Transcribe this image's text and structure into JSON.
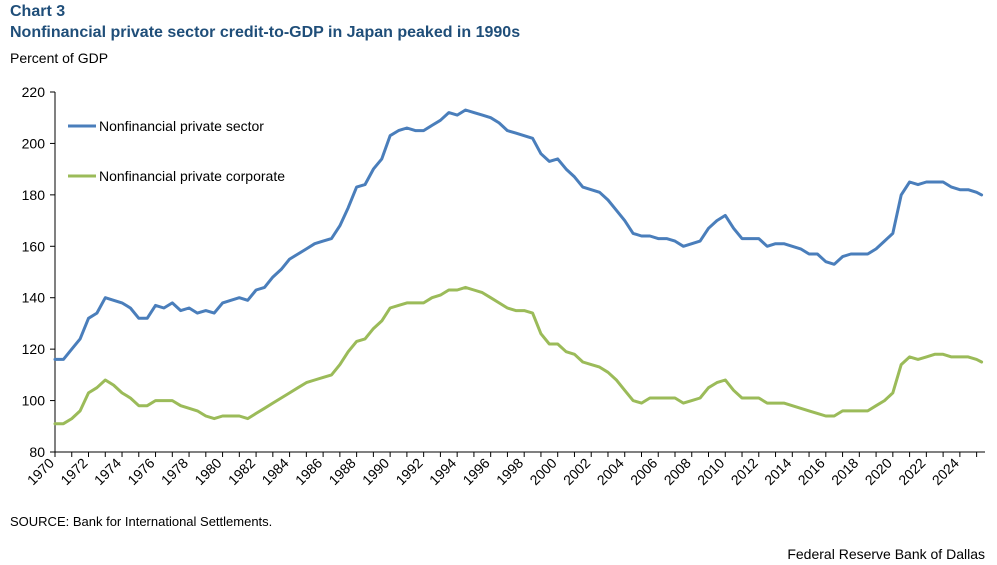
{
  "header": {
    "chart_number": "Chart 3",
    "title": "Nonfinancial private sector credit-to-GDP in Japan peaked in 1990s",
    "unit_label": "Percent of GDP"
  },
  "footer": {
    "source": "SOURCE: Bank for International Settlements.",
    "credit": "Federal Reserve Bank of Dallas"
  },
  "chart_data": {
    "type": "line",
    "title": "Nonfinancial private sector credit-to-GDP in Japan peaked in 1990s",
    "xlabel": "",
    "ylabel": "Percent of GDP",
    "xlim": [
      1970,
      2025.5
    ],
    "ylim": [
      80,
      220
    ],
    "y_ticks": [
      80,
      100,
      120,
      140,
      160,
      180,
      200,
      220
    ],
    "x_ticks": [
      "1970",
      "1972",
      "1974",
      "1976",
      "1978",
      "1980",
      "1982",
      "1984",
      "1986",
      "1988",
      "1990",
      "1992",
      "1994",
      "1996",
      "1998",
      "2000",
      "2002",
      "2004",
      "2006",
      "2008",
      "2010",
      "2012",
      "2014",
      "2016",
      "2018",
      "2020",
      "2022",
      "2024"
    ],
    "grid": false,
    "legend_position": "top-left",
    "series": [
      {
        "name": "Nonfinancial private sector",
        "color": "#4a7ebb",
        "points": [
          [
            1970,
            116
          ],
          [
            1970.5,
            116
          ],
          [
            1971,
            120
          ],
          [
            1971.5,
            124
          ],
          [
            1972,
            132
          ],
          [
            1972.5,
            134
          ],
          [
            1973,
            140
          ],
          [
            1973.5,
            139
          ],
          [
            1974,
            138
          ],
          [
            1974.5,
            136
          ],
          [
            1975,
            132
          ],
          [
            1975.5,
            132
          ],
          [
            1976,
            137
          ],
          [
            1976.5,
            136
          ],
          [
            1977,
            138
          ],
          [
            1977.5,
            135
          ],
          [
            1978,
            136
          ],
          [
            1978.5,
            134
          ],
          [
            1979,
            135
          ],
          [
            1979.5,
            134
          ],
          [
            1980,
            138
          ],
          [
            1980.5,
            139
          ],
          [
            1981,
            140
          ],
          [
            1981.5,
            139
          ],
          [
            1982,
            143
          ],
          [
            1982.5,
            144
          ],
          [
            1983,
            148
          ],
          [
            1983.5,
            151
          ],
          [
            1984,
            155
          ],
          [
            1984.5,
            157
          ],
          [
            1985,
            159
          ],
          [
            1985.5,
            161
          ],
          [
            1986,
            162
          ],
          [
            1986.5,
            163
          ],
          [
            1987,
            168
          ],
          [
            1987.5,
            175
          ],
          [
            1988,
            183
          ],
          [
            1988.5,
            184
          ],
          [
            1989,
            190
          ],
          [
            1989.5,
            194
          ],
          [
            1990,
            203
          ],
          [
            1990.5,
            205
          ],
          [
            1991,
            206
          ],
          [
            1991.5,
            205
          ],
          [
            1992,
            205
          ],
          [
            1992.5,
            207
          ],
          [
            1993,
            209
          ],
          [
            1993.5,
            212
          ],
          [
            1994,
            211
          ],
          [
            1994.5,
            213
          ],
          [
            1995,
            212
          ],
          [
            1995.5,
            211
          ],
          [
            1996,
            210
          ],
          [
            1996.5,
            208
          ],
          [
            1997,
            205
          ],
          [
            1997.5,
            204
          ],
          [
            1998,
            203
          ],
          [
            1998.5,
            202
          ],
          [
            1999,
            196
          ],
          [
            1999.5,
            193
          ],
          [
            2000,
            194
          ],
          [
            2000.5,
            190
          ],
          [
            2001,
            187
          ],
          [
            2001.5,
            183
          ],
          [
            2002,
            182
          ],
          [
            2002.5,
            181
          ],
          [
            2003,
            178
          ],
          [
            2003.5,
            174
          ],
          [
            2004,
            170
          ],
          [
            2004.5,
            165
          ],
          [
            2005,
            164
          ],
          [
            2005.5,
            164
          ],
          [
            2006,
            163
          ],
          [
            2006.5,
            163
          ],
          [
            2007,
            162
          ],
          [
            2007.5,
            160
          ],
          [
            2008,
            161
          ],
          [
            2008.5,
            162
          ],
          [
            2009,
            167
          ],
          [
            2009.5,
            170
          ],
          [
            2010,
            172
          ],
          [
            2010.5,
            167
          ],
          [
            2011,
            163
          ],
          [
            2011.5,
            163
          ],
          [
            2012,
            163
          ],
          [
            2012.5,
            160
          ],
          [
            2013,
            161
          ],
          [
            2013.5,
            161
          ],
          [
            2014,
            160
          ],
          [
            2014.5,
            159
          ],
          [
            2015,
            157
          ],
          [
            2015.5,
            157
          ],
          [
            2016,
            154
          ],
          [
            2016.5,
            153
          ],
          [
            2017,
            156
          ],
          [
            2017.5,
            157
          ],
          [
            2018,
            157
          ],
          [
            2018.5,
            157
          ],
          [
            2019,
            159
          ],
          [
            2019.5,
            162
          ],
          [
            2020,
            165
          ],
          [
            2020.5,
            180
          ],
          [
            2021,
            185
          ],
          [
            2021.5,
            184
          ],
          [
            2022,
            185
          ],
          [
            2022.5,
            185
          ],
          [
            2023,
            185
          ],
          [
            2023.5,
            183
          ],
          [
            2024,
            182
          ],
          [
            2024.5,
            182
          ],
          [
            2025,
            181
          ],
          [
            2025.3,
            180
          ]
        ]
      },
      {
        "name": "Nonfinancial private corporate",
        "color": "#9bbb59",
        "points": [
          [
            1970,
            91
          ],
          [
            1970.5,
            91
          ],
          [
            1971,
            93
          ],
          [
            1971.5,
            96
          ],
          [
            1972,
            103
          ],
          [
            1972.5,
            105
          ],
          [
            1973,
            108
          ],
          [
            1973.5,
            106
          ],
          [
            1974,
            103
          ],
          [
            1974.5,
            101
          ],
          [
            1975,
            98
          ],
          [
            1975.5,
            98
          ],
          [
            1976,
            100
          ],
          [
            1976.5,
            100
          ],
          [
            1977,
            100
          ],
          [
            1977.5,
            98
          ],
          [
            1978,
            97
          ],
          [
            1978.5,
            96
          ],
          [
            1979,
            94
          ],
          [
            1979.5,
            93
          ],
          [
            1980,
            94
          ],
          [
            1980.5,
            94
          ],
          [
            1981,
            94
          ],
          [
            1981.5,
            93
          ],
          [
            1982,
            95
          ],
          [
            1982.5,
            97
          ],
          [
            1983,
            99
          ],
          [
            1983.5,
            101
          ],
          [
            1984,
            103
          ],
          [
            1984.5,
            105
          ],
          [
            1985,
            107
          ],
          [
            1985.5,
            108
          ],
          [
            1986,
            109
          ],
          [
            1986.5,
            110
          ],
          [
            1987,
            114
          ],
          [
            1987.5,
            119
          ],
          [
            1988,
            123
          ],
          [
            1988.5,
            124
          ],
          [
            1989,
            128
          ],
          [
            1989.5,
            131
          ],
          [
            1990,
            136
          ],
          [
            1990.5,
            137
          ],
          [
            1991,
            138
          ],
          [
            1991.5,
            138
          ],
          [
            1992,
            138
          ],
          [
            1992.5,
            140
          ],
          [
            1993,
            141
          ],
          [
            1993.5,
            143
          ],
          [
            1994,
            143
          ],
          [
            1994.5,
            144
          ],
          [
            1995,
            143
          ],
          [
            1995.5,
            142
          ],
          [
            1996,
            140
          ],
          [
            1996.5,
            138
          ],
          [
            1997,
            136
          ],
          [
            1997.5,
            135
          ],
          [
            1998,
            135
          ],
          [
            1998.5,
            134
          ],
          [
            1999,
            126
          ],
          [
            1999.5,
            122
          ],
          [
            2000,
            122
          ],
          [
            2000.5,
            119
          ],
          [
            2001,
            118
          ],
          [
            2001.5,
            115
          ],
          [
            2002,
            114
          ],
          [
            2002.5,
            113
          ],
          [
            2003,
            111
          ],
          [
            2003.5,
            108
          ],
          [
            2004,
            104
          ],
          [
            2004.5,
            100
          ],
          [
            2005,
            99
          ],
          [
            2005.5,
            101
          ],
          [
            2006,
            101
          ],
          [
            2006.5,
            101
          ],
          [
            2007,
            101
          ],
          [
            2007.5,
            99
          ],
          [
            2008,
            100
          ],
          [
            2008.5,
            101
          ],
          [
            2009,
            105
          ],
          [
            2009.5,
            107
          ],
          [
            2010,
            108
          ],
          [
            2010.5,
            104
          ],
          [
            2011,
            101
          ],
          [
            2011.5,
            101
          ],
          [
            2012,
            101
          ],
          [
            2012.5,
            99
          ],
          [
            2013,
            99
          ],
          [
            2013.5,
            99
          ],
          [
            2014,
            98
          ],
          [
            2014.5,
            97
          ],
          [
            2015,
            96
          ],
          [
            2015.5,
            95
          ],
          [
            2016,
            94
          ],
          [
            2016.5,
            94
          ],
          [
            2017,
            96
          ],
          [
            2017.5,
            96
          ],
          [
            2018,
            96
          ],
          [
            2018.5,
            96
          ],
          [
            2019,
            98
          ],
          [
            2019.5,
            100
          ],
          [
            2020,
            103
          ],
          [
            2020.5,
            114
          ],
          [
            2021,
            117
          ],
          [
            2021.5,
            116
          ],
          [
            2022,
            117
          ],
          [
            2022.5,
            118
          ],
          [
            2023,
            118
          ],
          [
            2023.5,
            117
          ],
          [
            2024,
            117
          ],
          [
            2024.5,
            117
          ],
          [
            2025,
            116
          ],
          [
            2025.3,
            115
          ]
        ]
      }
    ]
  }
}
